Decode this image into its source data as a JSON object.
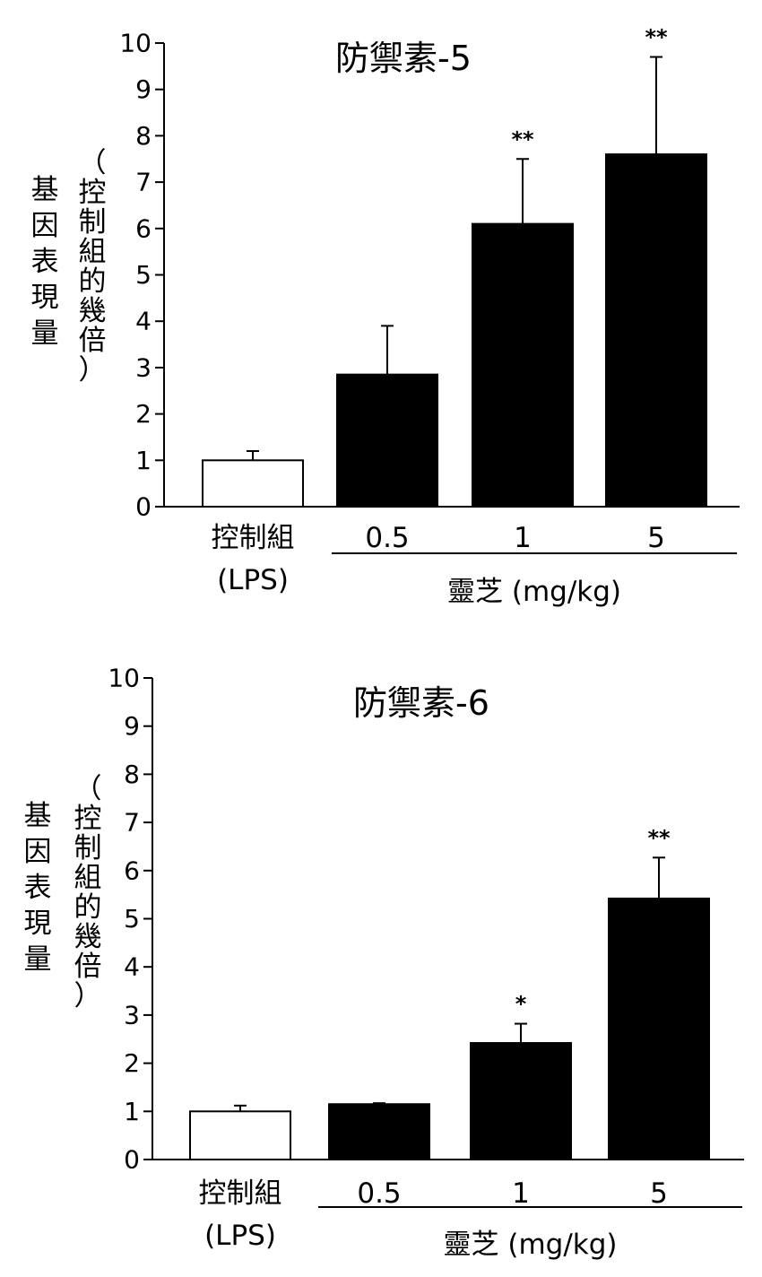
{
  "chart_data": [
    {
      "type": "bar",
      "title": "防禦素-5",
      "ylabel_outer": "基因表現量",
      "ylabel_inner": "（控制組的幾倍）",
      "ylim": [
        0,
        10
      ],
      "yticks": [
        0,
        1,
        2,
        3,
        4,
        5,
        6,
        7,
        8,
        9,
        10
      ],
      "categories": [
        "控制組\n(LPS)",
        "0.5",
        "1",
        "5"
      ],
      "values": [
        1.0,
        2.85,
        6.1,
        7.6
      ],
      "errors": [
        0.2,
        1.05,
        1.4,
        2.1
      ],
      "significance": [
        "",
        "",
        "**",
        "**"
      ],
      "bar_colors": [
        "#ffffff",
        "#000000",
        "#000000",
        "#000000"
      ],
      "group_label": "靈芝 (mg/kg)"
    },
    {
      "type": "bar",
      "title": "防禦素-6",
      "ylabel_outer": "基因表現量",
      "ylabel_inner": "（控制組的幾倍）",
      "ylim": [
        0,
        10
      ],
      "yticks": [
        0,
        1,
        2,
        3,
        4,
        5,
        6,
        7,
        8,
        9,
        10
      ],
      "categories": [
        "控制組\n(LPS)",
        "0.5",
        "1",
        "5"
      ],
      "values": [
        1.0,
        1.15,
        2.42,
        5.42
      ],
      "errors": [
        0.12,
        0.02,
        0.4,
        0.85
      ],
      "significance": [
        "",
        "",
        "*",
        "**"
      ],
      "bar_colors": [
        "#ffffff",
        "#000000",
        "#000000",
        "#000000"
      ],
      "group_label": "靈芝 (mg/kg)"
    }
  ]
}
